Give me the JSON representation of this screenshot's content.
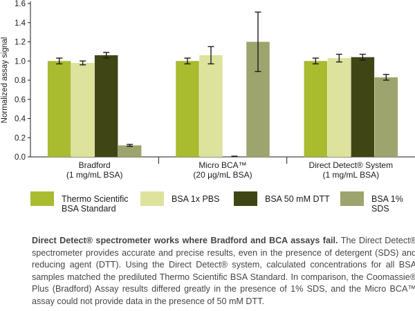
{
  "chart_data": {
    "type": "bar",
    "ylabel": "Normalized assay signal",
    "ylim": [
      0,
      1.6
    ],
    "yticks": [
      "0.0",
      "0.2",
      "0.4",
      "0.6",
      "0.8",
      "1.0",
      "1.2",
      "1.4",
      "1.6"
    ],
    "groups": [
      {
        "label_line1": "Bradford",
        "label_line2": "(1 mg/mL BSA)"
      },
      {
        "label_line1": "Micro BCA™",
        "label_line2": "(20 µg/mL BSA)"
      },
      {
        "label_line1": "Direct Detect® System",
        "label_line2": "(1 mg/mL BSA)"
      }
    ],
    "series": [
      {
        "name": "Thermo Scientific BSA Standard",
        "color": "#a9bb2f",
        "values": [
          1.0,
          1.0,
          1.0
        ],
        "errors": [
          0.03,
          0.03,
          0.03
        ]
      },
      {
        "name": "BSA 1x PBS",
        "color": "#dde29d",
        "values": [
          0.98,
          1.06,
          1.03
        ],
        "errors": [
          0.02,
          0.09,
          0.04
        ]
      },
      {
        "name": "BSA 50 mM DTT",
        "color": "#3f4514",
        "values": [
          1.06,
          0.0,
          1.04
        ],
        "errors": [
          0.03,
          0.0,
          0.03
        ]
      },
      {
        "name": "BSA 1% SDS",
        "color": "#9ea46d",
        "values": [
          0.12,
          1.2,
          0.83
        ],
        "errors": [
          0.01,
          0.31,
          0.03
        ]
      }
    ]
  },
  "legend": [
    {
      "label": "Thermo Scientific\nBSA Standard",
      "color": "#a9bb2f"
    },
    {
      "label": "BSA 1x PBS",
      "color": "#dde29d"
    },
    {
      "label": "BSA 50 mM DTT",
      "color": "#3f4514"
    },
    {
      "label": "BSA 1% SDS",
      "color": "#9ea46d"
    }
  ],
  "caption": {
    "bold": "Direct Detect® spectrometer works where Bradford and BCA assays fail.",
    "text": " The Direct Detect® spectrometer provides accurate and precise results, even in the presence of detergent (SDS) and reducing agent (DTT). Using the Direct Detect® system, calculated concentrations for all BSA samples matched the prediluted Thermo Scientific BSA Standard. In comparison, the Coomassie® Plus (Bradford) Assay results differed greatly in the presence of 1% SDS, and the Micro BCA™ assay could not provide data in the presence of 50 mM DTT."
  }
}
